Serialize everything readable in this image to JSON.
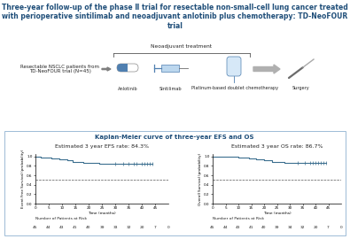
{
  "title": "Three-year follow-up of the phase Ⅱ trial for resectable non-small-cell lung cancer treated with perioperative sintilimab and neoadjuvant anlotinib plus chemotherapy: TD-NeoFOUR trial",
  "flow": {
    "population": "Resectable NSCLC patients from TD-NeoFOUR trial (N=45)",
    "neoadjuvant_label": "Neoadjuvant treatment",
    "drugs": [
      "Anlotinib",
      "Sintilimab",
      "Platinum-based doublet chemotherapy"
    ],
    "surgery": "Surgery"
  },
  "panel_title": "Kaplan-Meier curve of three-year EFS and OS",
  "chart_data": [
    {
      "type": "step",
      "annotation": "Estimated 3 year EFS rate: 84.3%",
      "x_label": "Time (months)",
      "y_label": "Event Free Survival (probability)",
      "x": [
        0,
        2,
        6,
        9,
        12,
        14,
        18,
        24,
        44
      ],
      "values": [
        1.0,
        0.978,
        0.956,
        0.933,
        0.911,
        0.889,
        0.867,
        0.843,
        0.843
      ],
      "color": "#3b6e8f",
      "marker": "|",
      "censored": {
        "x": [
          30,
          33,
          35,
          37,
          38,
          40,
          41,
          42,
          43,
          44
        ],
        "values": [
          0.843,
          0.843,
          0.843,
          0.843,
          0.843,
          0.843,
          0.843,
          0.843,
          0.843,
          0.843
        ]
      },
      "reference_line": 0.5,
      "xlim": [
        0,
        50
      ],
      "xticks": [
        0,
        5,
        10,
        15,
        20,
        25,
        30,
        35,
        40,
        45
      ],
      "ylim": [
        0.0,
        1.05
      ],
      "yticks": [
        0.0,
        0.2,
        0.4,
        0.6,
        0.8,
        1.0
      ],
      "risk_table": {
        "title": "Number of Patients at Risk",
        "x": [
          0,
          5,
          10,
          15,
          20,
          25,
          30,
          35,
          40,
          45,
          50
        ],
        "values": [
          45,
          44,
          43,
          41,
          40,
          39,
          33,
          32,
          20,
          7,
          0
        ]
      }
    },
    {
      "type": "step",
      "annotation": "Estimated 3 year OS rate: 86.7%",
      "x_label": "Time (months)",
      "y_label": "Overall Survival (probability)",
      "x": [
        0,
        10,
        14,
        17,
        20,
        23,
        28,
        44
      ],
      "values": [
        1.0,
        0.978,
        0.956,
        0.933,
        0.911,
        0.889,
        0.867,
        0.867
      ],
      "color": "#3b6e8f",
      "marker": "|",
      "censored": {
        "x": [
          33,
          36,
          38,
          39,
          40,
          41,
          42,
          43,
          44
        ],
        "values": [
          0.867,
          0.867,
          0.867,
          0.867,
          0.867,
          0.867,
          0.867,
          0.867,
          0.867
        ]
      },
      "reference_line": 0.5,
      "xlim": [
        0,
        50
      ],
      "xticks": [
        0,
        5,
        10,
        15,
        20,
        25,
        30,
        35,
        40,
        45
      ],
      "ylim": [
        0.0,
        1.05
      ],
      "yticks": [
        0.0,
        0.2,
        0.4,
        0.6,
        0.8,
        1.0
      ],
      "risk_table": {
        "title": "Number of Patients at Risk",
        "x": [
          0,
          5,
          10,
          15,
          20,
          25,
          30,
          35,
          40,
          45,
          50
        ],
        "values": [
          45,
          44,
          43,
          41,
          40,
          39,
          34,
          32,
          20,
          7,
          0
        ]
      }
    }
  ]
}
